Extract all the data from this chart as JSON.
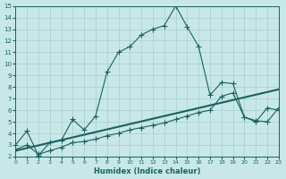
{
  "xlabel": "Humidex (Indice chaleur)",
  "bg_color": "#c8e8e8",
  "grid_color": "#a8cccc",
  "line_color": "#1a6060",
  "xlim": [
    0,
    23
  ],
  "ylim": [
    2,
    15
  ],
  "yticks": [
    2,
    3,
    4,
    5,
    6,
    7,
    8,
    9,
    10,
    11,
    12,
    13,
    14,
    15
  ],
  "xticks": [
    0,
    1,
    2,
    3,
    4,
    5,
    6,
    7,
    8,
    9,
    10,
    11,
    12,
    13,
    14,
    15,
    16,
    17,
    18,
    19,
    20,
    21,
    22,
    23
  ],
  "curve1_x": [
    0,
    1,
    2,
    3,
    4,
    5,
    6,
    7,
    8,
    9,
    10,
    11,
    12,
    13,
    14,
    15,
    16,
    17,
    18,
    19,
    20,
    21,
    22,
    23
  ],
  "curve1_y": [
    3.0,
    4.2,
    2.1,
    3.2,
    3.4,
    5.2,
    4.3,
    5.5,
    9.3,
    11.0,
    11.5,
    12.5,
    13.0,
    13.3,
    15.0,
    13.2,
    11.5,
    7.3,
    8.4,
    8.3,
    5.4,
    5.0,
    6.2,
    6.0
  ],
  "curve2_x": [
    0,
    1,
    2,
    3,
    4,
    5,
    6,
    7,
    8,
    9,
    10,
    11,
    12,
    13,
    14,
    15,
    16,
    17,
    18,
    19,
    20,
    21,
    22,
    23
  ],
  "curve2_y": [
    2.6,
    3.0,
    2.2,
    2.5,
    2.8,
    3.2,
    3.3,
    3.5,
    3.8,
    4.0,
    4.3,
    4.5,
    4.7,
    4.9,
    5.2,
    5.5,
    5.8,
    6.0,
    7.2,
    7.5,
    5.4,
    5.1,
    5.0,
    6.2
  ],
  "curve3_x": [
    0,
    23
  ],
  "curve3_y": [
    2.5,
    7.8
  ]
}
